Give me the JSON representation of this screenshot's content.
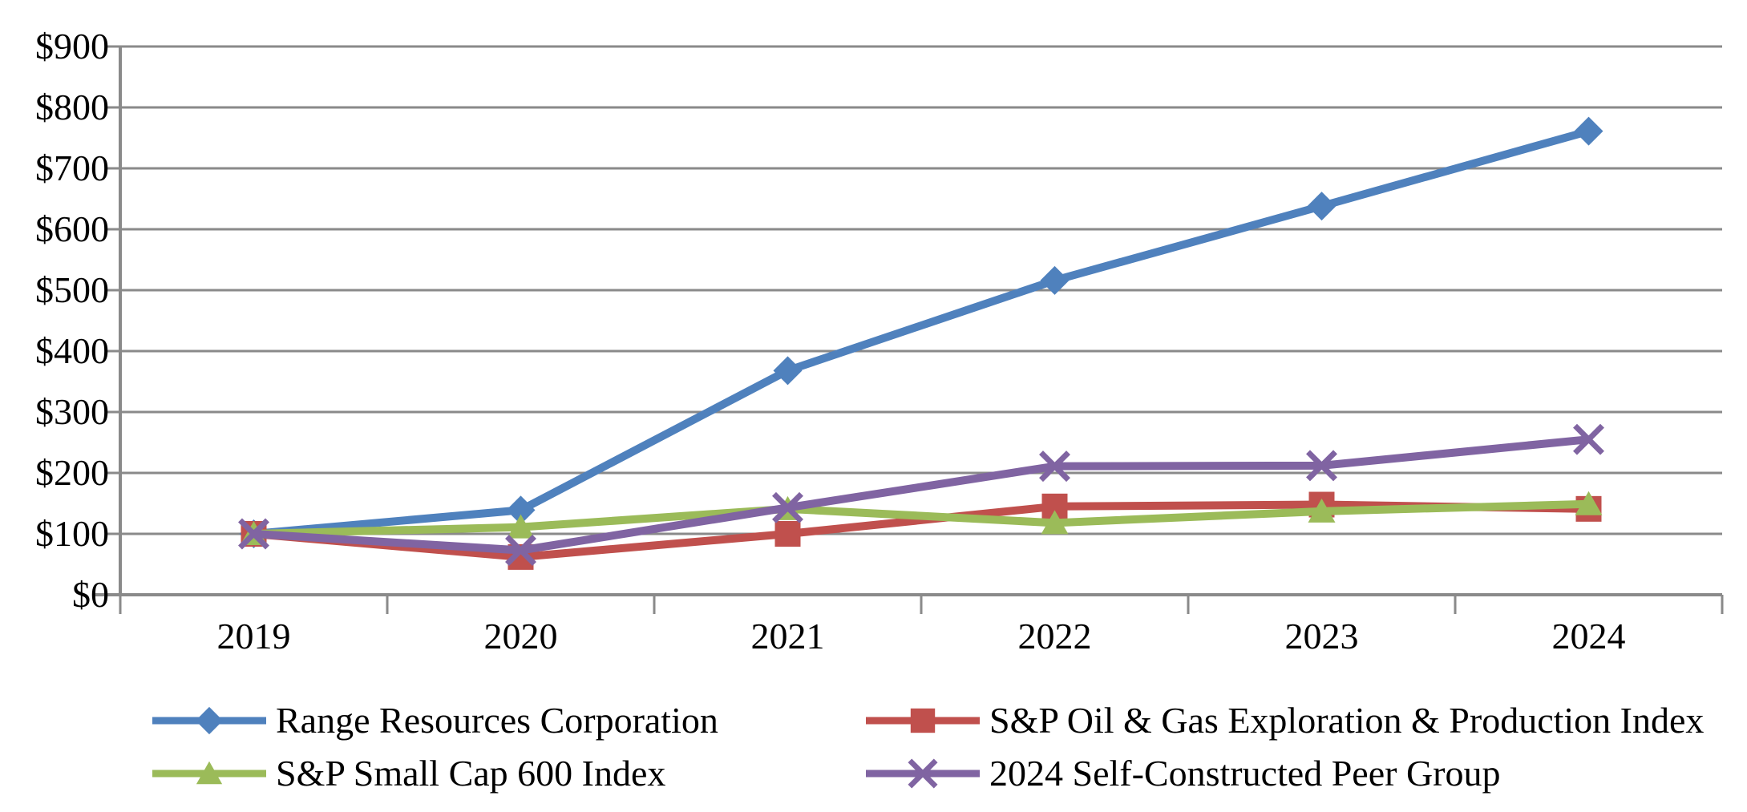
{
  "chart_data": {
    "type": "line",
    "title": "",
    "categories": [
      "2019",
      "2020",
      "2021",
      "2022",
      "2023",
      "2024"
    ],
    "y_tick_labels": [
      "$0",
      "$100",
      "$200",
      "$300",
      "$400",
      "$500",
      "$600",
      "$700",
      "$800",
      "$900"
    ],
    "ylim": [
      0,
      900
    ],
    "y_step": 100,
    "grid": true,
    "legend_position": "bottom",
    "series": [
      {
        "name": "Range Resources Corporation",
        "marker": "diamond",
        "color": "#4F81BD",
        "values": [
          100,
          139,
          368,
          516,
          638,
          761
        ]
      },
      {
        "name": "S&P Oil & Gas Exploration & Production Index",
        "marker": "square",
        "color": "#C0504D",
        "values": [
          100,
          62,
          100,
          145,
          148,
          141
        ]
      },
      {
        "name": "S&P Small Cap 600 Index",
        "marker": "triangle",
        "color": "#9BBB59",
        "values": [
          100,
          111,
          141,
          118,
          137,
          149
        ]
      },
      {
        "name": "2024 Self-Constructed Peer Group",
        "marker": "x",
        "color": "#8064A2",
        "values": [
          100,
          73,
          143,
          211,
          212,
          255
        ]
      }
    ],
    "axis_color": "#8A8A8A",
    "grid_color": "#8A8A8A",
    "text_color": "#000000"
  }
}
